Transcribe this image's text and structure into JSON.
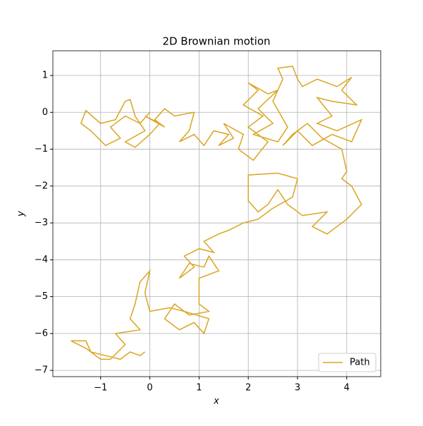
{
  "chart_data": {
    "type": "line",
    "title": "2D Brownian motion",
    "x_label": "x",
    "y_label": "y",
    "xlim": [
      -1.97,
      4.69
    ],
    "ylim": [
      -7.17,
      1.67
    ],
    "xticks": [
      {
        "value": -1,
        "label": "−1"
      },
      0,
      1,
      2,
      3,
      4
    ],
    "yticks": [
      {
        "value": -7,
        "label": "−7"
      },
      {
        "value": -6,
        "label": "−6"
      },
      {
        "value": -5,
        "label": "−5"
      },
      {
        "value": -4,
        "label": "−4"
      },
      {
        "value": -3,
        "label": "−3"
      },
      {
        "value": -2,
        "label": "−2"
      },
      {
        "value": -1,
        "label": "−1"
      },
      0,
      1
    ],
    "grid": true,
    "legend": "lower right",
    "series": [
      {
        "name": "Path",
        "color": "#daa520",
        "x": [
          0,
          -0.2,
          -0.5,
          -0.8,
          -0.6,
          -0.9,
          -1.2,
          -1.4,
          -1.3,
          -1.0,
          -0.7,
          -0.5,
          -0.4,
          -0.3,
          -0.1,
          -0.5,
          -0.3,
          0,
          0.2,
          -0.1,
          0.3,
          0.1,
          0.3,
          0.5,
          0.9,
          0.8,
          0.6,
          0.9,
          1.1,
          1.3,
          1.6,
          1.4,
          1.7,
          1.5,
          1.9,
          1.8,
          2.1,
          2.4,
          2.0,
          2.3,
          1.9,
          2.2,
          2.0,
          2.4,
          2.6,
          2.2,
          2.5,
          2.1,
          2.6,
          2.8,
          2.5,
          2.7,
          2.6,
          2.9,
          3.0,
          3.1,
          3.4,
          3.8,
          4.1,
          3.9,
          4.2,
          3.7,
          3.4,
          3.7,
          3.4,
          3.8,
          4.3,
          4.1,
          3.7,
          3.3,
          3.0,
          2.7,
          2.9,
          3.2,
          3.5,
          3.9,
          4.0,
          3.9,
          4.1,
          4.3,
          4.0,
          3.6,
          3.3,
          3.6,
          3.1,
          2.8,
          2.6,
          2.4,
          2.2,
          2.0,
          2.0,
          2.6,
          3.0,
          2.9,
          2.5,
          2.2,
          1.9,
          1.6,
          1.4,
          1.1,
          1.3,
          1.0,
          0.7,
          0.9,
          0.6,
          0.8,
          1.1,
          1.2,
          1.4,
          1.0,
          1.0,
          1.2,
          0.8,
          0.5,
          0.3,
          0.6,
          0.9,
          1.1,
          1.2,
          0.7,
          0.4,
          0.0,
          -0.1,
          0.0,
          -0.2,
          -0.3,
          -0.4,
          -0.2,
          -0.7,
          -0.5,
          -0.8,
          -1.0,
          -1.3,
          -1.6,
          -1.3,
          -1.2,
          -0.9,
          -0.6,
          -0.4,
          -0.2,
          -0.1
        ],
        "values": [
          0,
          -0.3,
          -0.1,
          -0.4,
          -0.7,
          -0.9,
          -0.5,
          -0.3,
          0.05,
          -0.3,
          -0.2,
          0.3,
          0.35,
          -0.1,
          -0.5,
          -0.8,
          -0.95,
          -0.6,
          -0.3,
          -0.1,
          -0.4,
          -0.2,
          0.1,
          -0.1,
          0,
          -0.5,
          -0.8,
          -0.6,
          -0.9,
          -0.5,
          -0.6,
          -0.9,
          -0.7,
          -0.3,
          -0.6,
          -1.0,
          -1.3,
          -0.8,
          -0.4,
          -0.1,
          0.2,
          0.6,
          0.8,
          0.5,
          0.6,
          0.1,
          -0.3,
          -0.6,
          -0.8,
          -0.4,
          0.3,
          0.9,
          1.2,
          1.25,
          0.9,
          0.7,
          0.9,
          0.7,
          0.95,
          0.6,
          0.2,
          0.3,
          0.4,
          -0.1,
          -0.3,
          -0.5,
          -0.2,
          -0.8,
          -0.6,
          -0.9,
          -0.5,
          -0.9,
          -0.6,
          -0.3,
          -0.7,
          -1.0,
          -1.6,
          -1.8,
          -2.0,
          -2.5,
          -2.9,
          -3.3,
          -3.1,
          -2.7,
          -2.8,
          -2.5,
          -2.1,
          -2.5,
          -2.7,
          -2.4,
          -1.7,
          -1.65,
          -1.8,
          -2.3,
          -2.6,
          -2.9,
          -3.0,
          -3.2,
          -3.3,
          -3.5,
          -3.8,
          -3.7,
          -3.9,
          -4.2,
          -4.5,
          -4.1,
          -4.2,
          -3.9,
          -4.3,
          -4.5,
          -5.2,
          -5.4,
          -5.5,
          -5.2,
          -5.6,
          -5.9,
          -5.7,
          -6.0,
          -5.6,
          -5.4,
          -5.3,
          -5.4,
          -4.9,
          -4.3,
          -4.6,
          -5.2,
          -5.6,
          -5.9,
          -6.0,
          -6.3,
          -6.7,
          -6.7,
          -6.4,
          -6.2,
          -6.2,
          -6.5,
          -6.6,
          -6.7,
          -6.5,
          -6.6,
          -6.5
        ]
      }
    ]
  }
}
